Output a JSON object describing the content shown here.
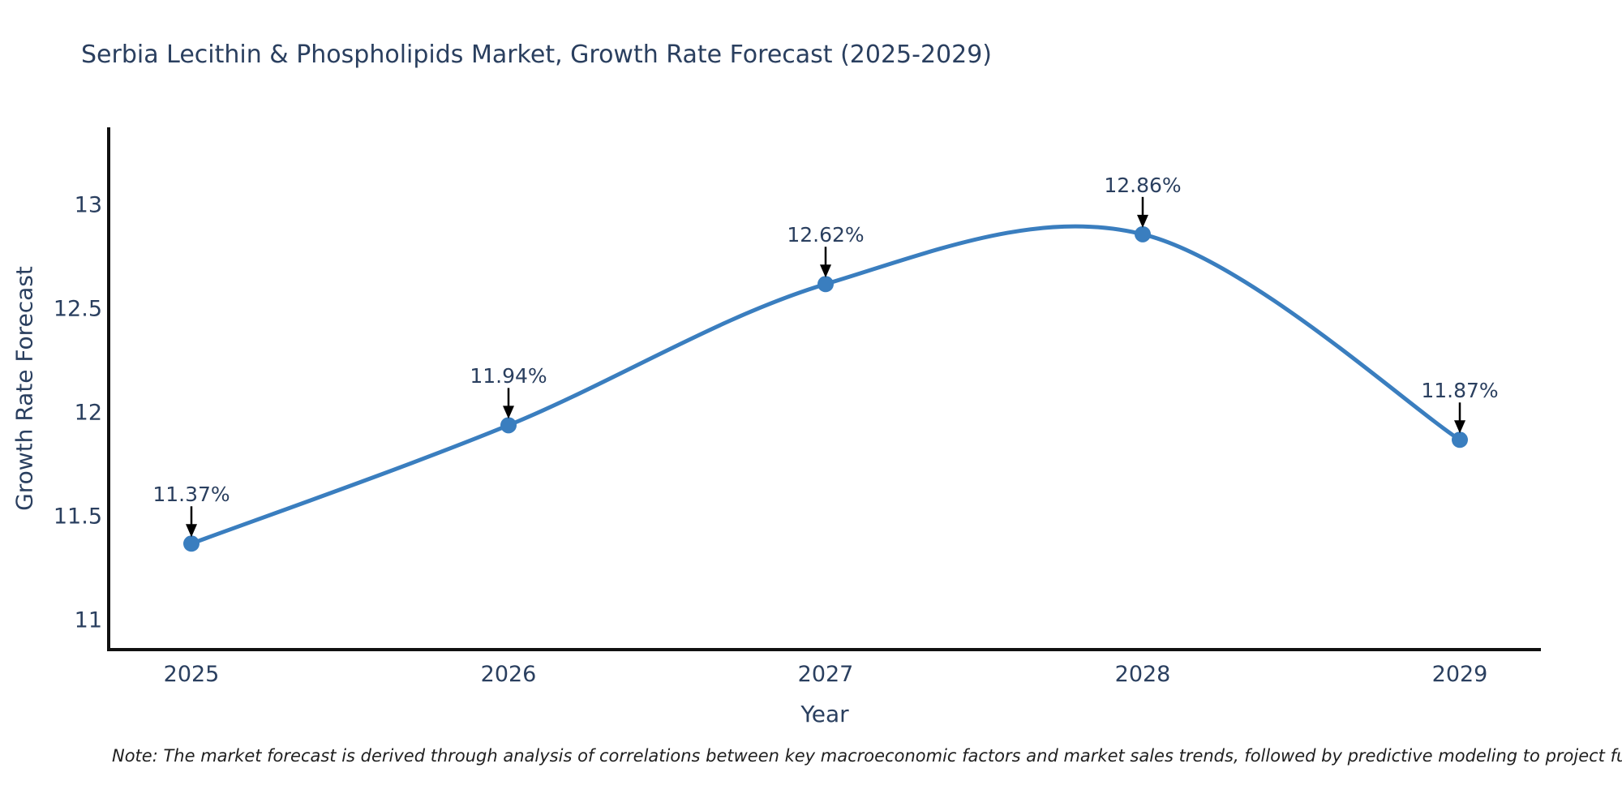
{
  "title": "Serbia Lecithin & Phospholipids Market, Growth Rate Forecast (2025-2029)",
  "note": "Note: The market forecast is derived through analysis of correlations between key macroeconomic factors and market sales trends, followed by predictive modeling to project future sal",
  "colors": {
    "line": "#3a7ebf",
    "marker": "#3a7ebf",
    "text": "#2a3f5f",
    "axis": "#111111",
    "arrow": "#000000",
    "background": "#ffffff"
  },
  "chart_data": {
    "type": "line",
    "line_shape": "spline",
    "title": "Serbia Lecithin & Phospholipids Market, Growth Rate Forecast (2025-2029)",
    "xlabel": "Year",
    "ylabel": "Growth Rate Forecast",
    "x": [
      2025,
      2026,
      2027,
      2028,
      2029
    ],
    "xtick_labels": [
      "2025",
      "2026",
      "2027",
      "2028",
      "2029"
    ],
    "series": [
      {
        "name": "Growth Rate Forecast",
        "values": [
          11.37,
          11.94,
          12.62,
          12.86,
          11.87
        ]
      }
    ],
    "point_labels": [
      "11.37%",
      "11.94%",
      "12.62%",
      "12.86%",
      "11.87%"
    ],
    "yticks": [
      13,
      12.5,
      12,
      11.5,
      11
    ],
    "ytick_labels": [
      "13",
      "12.5",
      "12",
      "11.5",
      "11"
    ],
    "ylim": [
      10.86,
      13.38
    ],
    "xlim": [
      2024.74,
      2029.26
    ],
    "grid": false,
    "legend": false,
    "annotations": "percentage value label with black down-arrow above each data point"
  }
}
